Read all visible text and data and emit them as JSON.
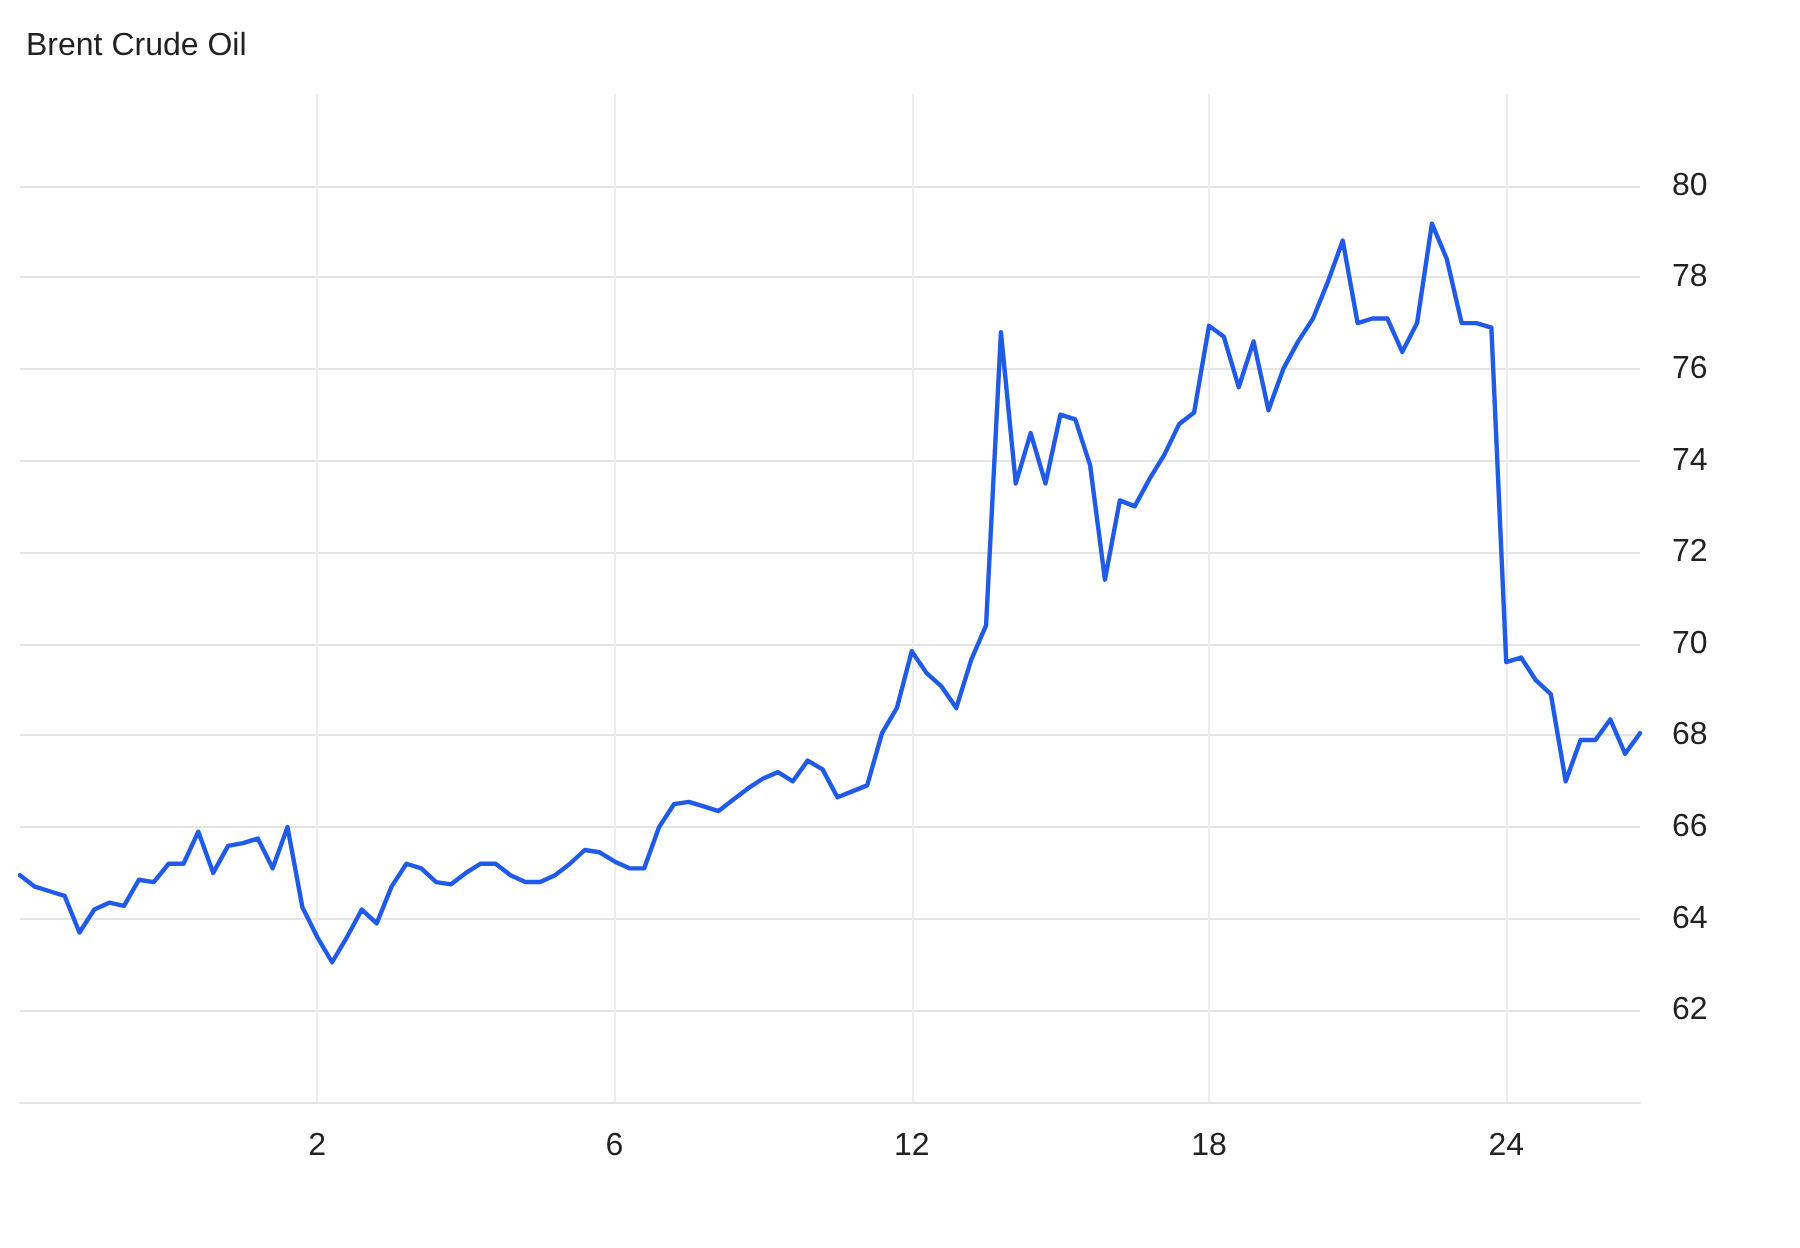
{
  "chart_data": {
    "type": "line",
    "title": "Brent Crude Oil",
    "categories": [
      null,
      null,
      null,
      null,
      null,
      null,
      null,
      null,
      null,
      null,
      null,
      null,
      null,
      null,
      null,
      null,
      null,
      null,
      null,
      null,
      "2",
      null,
      null,
      null,
      null,
      null,
      null,
      null,
      null,
      null,
      null,
      null,
      null,
      null,
      null,
      null,
      null,
      null,
      null,
      null,
      "6",
      null,
      null,
      null,
      null,
      null,
      null,
      null,
      null,
      null,
      null,
      null,
      null,
      null,
      null,
      null,
      null,
      null,
      null,
      null,
      "12",
      null,
      null,
      null,
      null,
      null,
      null,
      null,
      null,
      null,
      null,
      null,
      null,
      null,
      null,
      null,
      null,
      null,
      null,
      null,
      "18",
      null,
      null,
      null,
      null,
      null,
      null,
      null,
      null,
      null,
      null,
      null,
      null,
      null,
      null,
      null,
      null,
      null,
      null,
      null,
      "24",
      null,
      null,
      null,
      null,
      null,
      null,
      null,
      null,
      null
    ],
    "series": [
      {
        "color": "#1f5ae8",
        "values": [
          64.95,
          64.7,
          64.6,
          64.5,
          63.7,
          64.2,
          64.35,
          64.28,
          64.85,
          64.8,
          65.2,
          65.2,
          65.9,
          65.0,
          65.59,
          65.65,
          65.75,
          65.1,
          66.0,
          64.25,
          63.6,
          63.05,
          63.6,
          64.2,
          63.9,
          64.7,
          65.2,
          65.1,
          64.8,
          64.75,
          65.0,
          65.2,
          65.2,
          64.95,
          64.8,
          64.8,
          64.95,
          65.2,
          65.5,
          65.45,
          65.25,
          65.1,
          65.1,
          66.0,
          66.5,
          66.55,
          66.45,
          66.35,
          66.6,
          66.85,
          67.06,
          67.2,
          67.0,
          67.45,
          67.26,
          66.65,
          66.78,
          66.91,
          68.05,
          68.6,
          69.84,
          69.36,
          69.07,
          68.6,
          69.65,
          70.4,
          76.8,
          73.5,
          74.6,
          73.5,
          75.0,
          74.9,
          73.9,
          71.4,
          73.13,
          73.0,
          73.6,
          74.13,
          74.8,
          75.05,
          76.94,
          76.7,
          75.6,
          76.6,
          75.1,
          76.0,
          76.6,
          77.1,
          77.9,
          78.8,
          77.0,
          77.1,
          77.1,
          76.37,
          77.0,
          79.17,
          78.4,
          77.0,
          77.0,
          76.9,
          69.6,
          69.7,
          69.2,
          68.9,
          67.0,
          67.9,
          67.9,
          68.35,
          67.6,
          68.05
        ]
      }
    ],
    "ylim": [
      60,
      82
    ],
    "yticks": [
      62,
      64,
      66,
      68,
      70,
      72,
      74,
      76,
      78,
      80
    ],
    "grid": true,
    "marker": "none",
    "line_style": "solid"
  }
}
